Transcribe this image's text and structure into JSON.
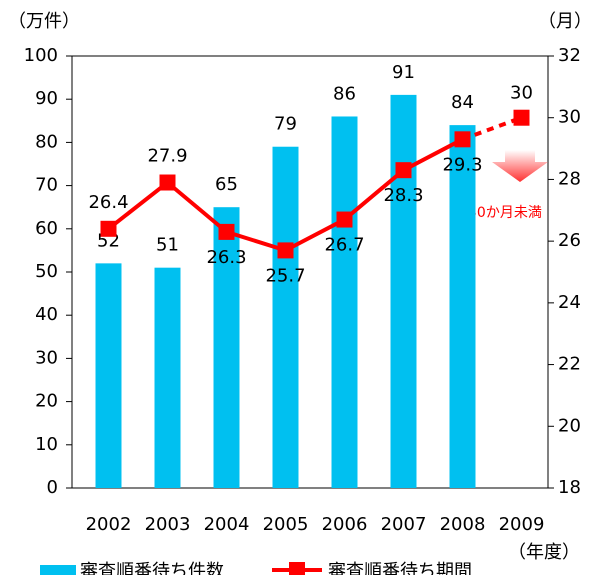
{
  "chart_data": {
    "type": "bar_line",
    "y_label": "（万件）",
    "y2_label": "（月）",
    "x_label": "（年度）",
    "categories": [
      "2002",
      "2003",
      "2004",
      "2005",
      "2006",
      "2007",
      "2008",
      "2009"
    ],
    "series": [
      {
        "name": "審査順番待ち件数",
        "color": "#00c0f0",
        "type": "bar",
        "values": [
          52,
          51,
          65,
          79,
          86,
          91,
          84,
          null
        ]
      },
      {
        "name": "審査順番待ち期間",
        "color": "#ff0000",
        "type": "line",
        "axis": "y2",
        "values": [
          26.4,
          27.9,
          26.3,
          25.7,
          26.7,
          28.3,
          29.3,
          null
        ]
      }
    ],
    "projection": {
      "category": "2009",
      "value": 30,
      "color": "#ff0000"
    },
    "annotation": "30か月未満",
    "ylim": [
      0,
      100
    ],
    "yticks": [
      0,
      10,
      20,
      30,
      40,
      50,
      60,
      70,
      80,
      90,
      100
    ],
    "y2lim": [
      18,
      32
    ],
    "y2ticks": [
      18,
      20,
      22,
      24,
      26,
      28,
      30,
      32
    ],
    "grid": false
  }
}
